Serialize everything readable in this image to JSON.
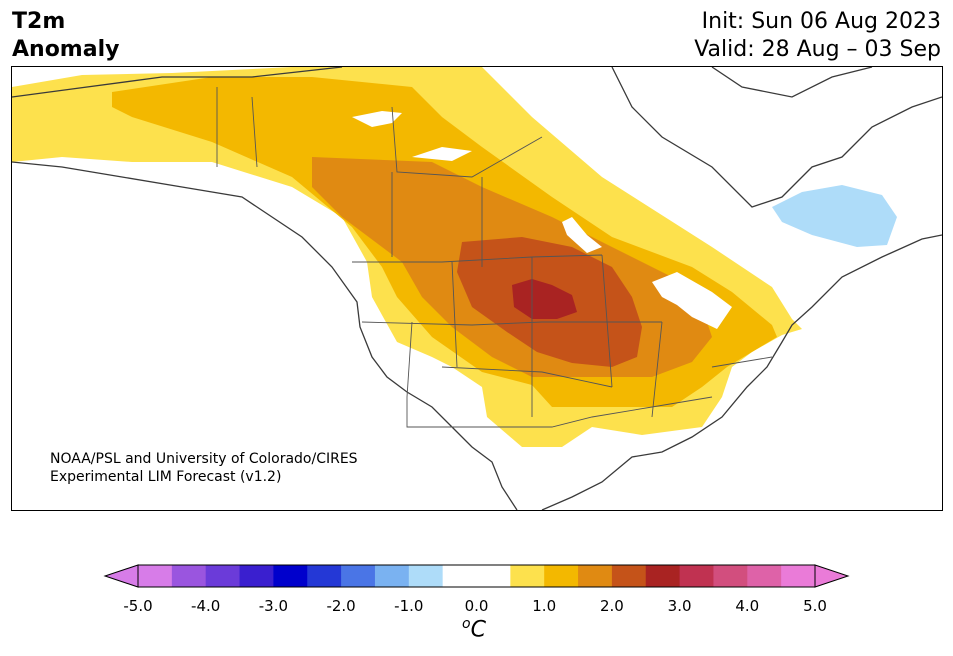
{
  "title": {
    "line1": "T2m",
    "line2": "Anomaly"
  },
  "init": "Init: Sun 06 Aug 2023",
  "valid": "Valid: 28 Aug – 03 Sep",
  "credit": {
    "line1": "NOAA/PSL and University of Colorado/CIRES",
    "line2": "Experimental LIM Forecast (v1.2)"
  },
  "colorbar": {
    "colors": [
      "#d77ce8",
      "#9a55df",
      "#6b3bd9",
      "#3a1fcf",
      "#0000cc",
      "#2438d6",
      "#4a75e6",
      "#7ab2f1",
      "#aedcf9",
      "#ffffff",
      "#ffffff",
      "#fde14d",
      "#f3b800",
      "#e08a12",
      "#c55319",
      "#a92322",
      "#c03251",
      "#d24e7e",
      "#de62a8",
      "#ea7bd8"
    ],
    "ticks": [
      "-5.0",
      "-4.0",
      "-3.0",
      "-2.0",
      "-1.0",
      "0.0",
      "1.0",
      "2.0",
      "3.0",
      "4.0",
      "5.0"
    ],
    "unit_base": "C",
    "unit_sup": "o"
  }
}
